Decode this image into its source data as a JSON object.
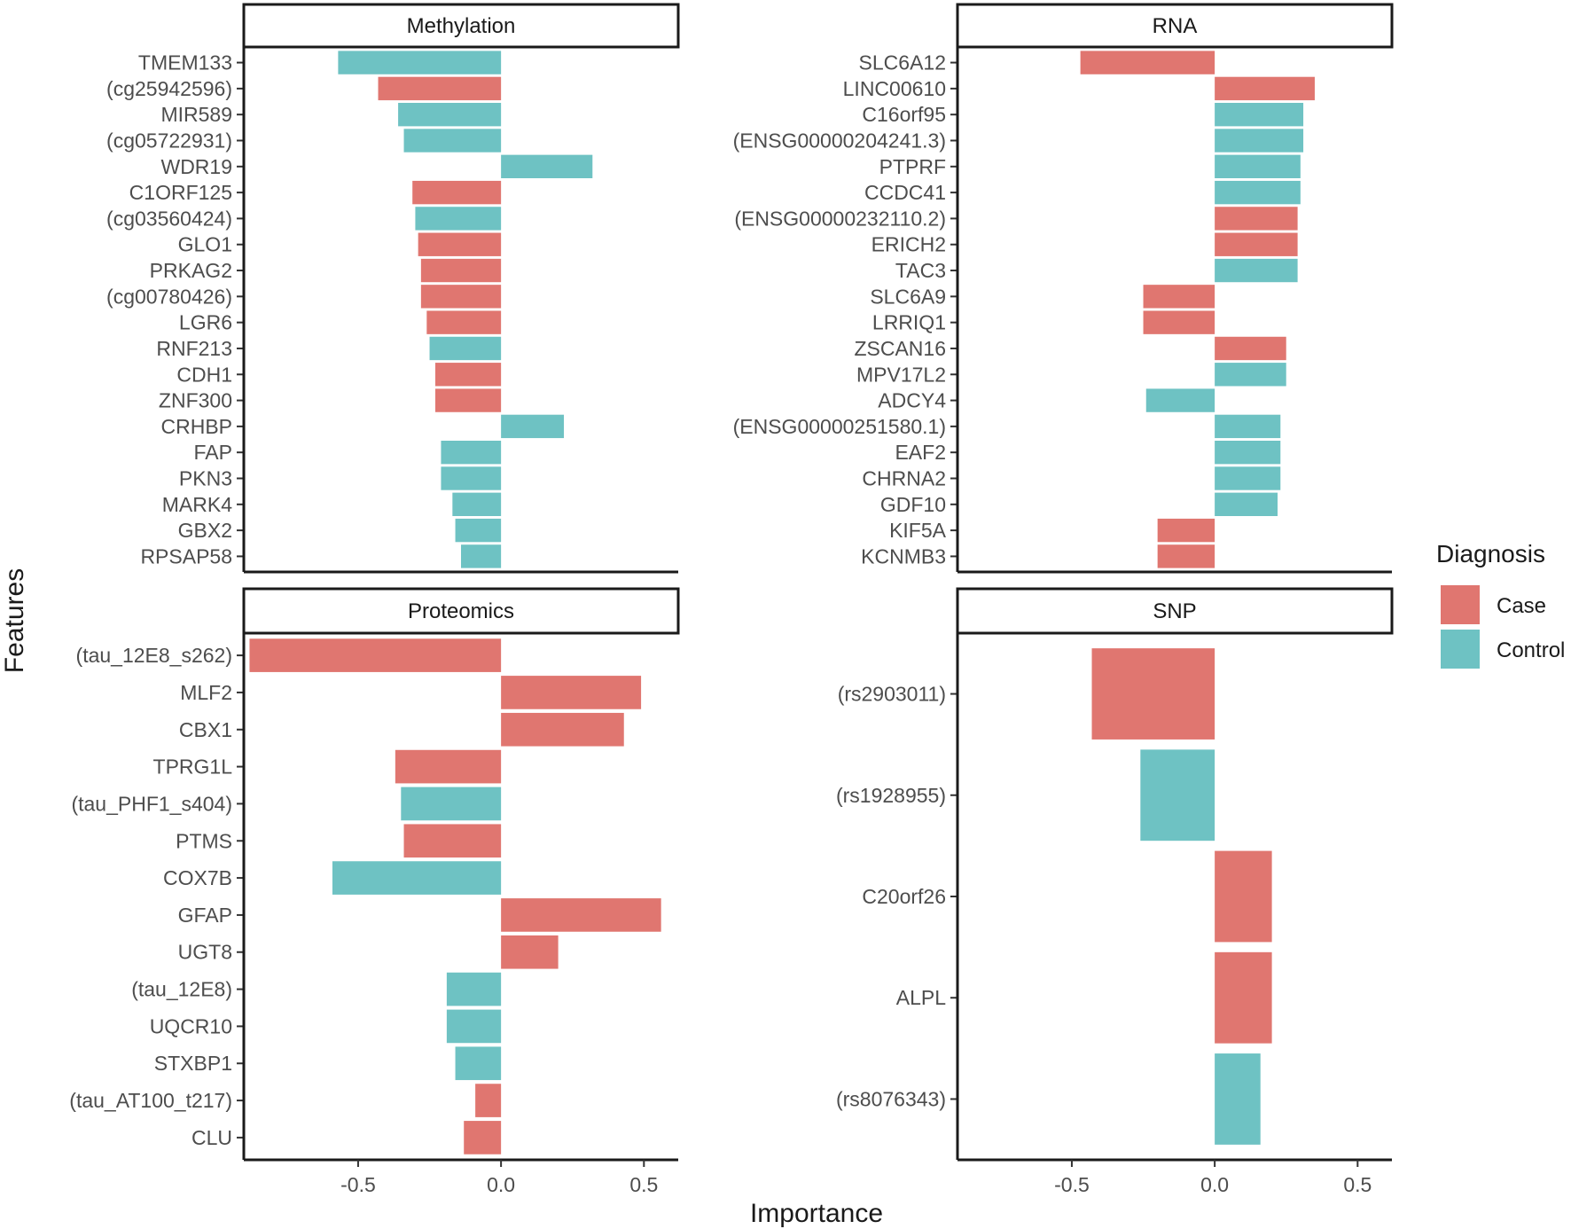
{
  "chart_data": {
    "type": "bar",
    "orientation": "horizontal",
    "xlabel": "Importance",
    "ylabel": "Features",
    "xlim": [
      -0.9,
      0.62
    ],
    "xticks": [
      -0.5,
      0.0,
      0.5
    ],
    "xtick_labels": [
      "-0.5",
      "0.0",
      "0.5"
    ],
    "legend": {
      "title": "Diagnosis",
      "position": "right",
      "entries": [
        {
          "label": "Case",
          "color": "#E07670"
        },
        {
          "label": "Control",
          "color": "#6EC2C3"
        }
      ]
    },
    "colors": {
      "Case": "#E07670",
      "Control": "#6EC2C3"
    },
    "panels": [
      {
        "title": "Methylation",
        "features": [
          {
            "name": "TMEM133",
            "value": -0.57,
            "group": "Control"
          },
          {
            "name": "(cg25942596)",
            "value": -0.43,
            "group": "Case"
          },
          {
            "name": "MIR589",
            "value": -0.36,
            "group": "Control"
          },
          {
            "name": "(cg05722931)",
            "value": -0.34,
            "group": "Control"
          },
          {
            "name": "WDR19",
            "value": 0.32,
            "group": "Control"
          },
          {
            "name": "C1ORF125",
            "value": -0.31,
            "group": "Case"
          },
          {
            "name": "(cg03560424)",
            "value": -0.3,
            "group": "Control"
          },
          {
            "name": "GLO1",
            "value": -0.29,
            "group": "Case"
          },
          {
            "name": "PRKAG2",
            "value": -0.28,
            "group": "Case"
          },
          {
            "name": "(cg00780426)",
            "value": -0.28,
            "group": "Case"
          },
          {
            "name": "LGR6",
            "value": -0.26,
            "group": "Case"
          },
          {
            "name": "RNF213",
            "value": -0.25,
            "group": "Control"
          },
          {
            "name": "CDH1",
            "value": -0.23,
            "group": "Case"
          },
          {
            "name": "ZNF300",
            "value": -0.23,
            "group": "Case"
          },
          {
            "name": "CRHBP",
            "value": 0.22,
            "group": "Control"
          },
          {
            "name": "FAP",
            "value": -0.21,
            "group": "Control"
          },
          {
            "name": "PKN3",
            "value": -0.21,
            "group": "Control"
          },
          {
            "name": "MARK4",
            "value": -0.17,
            "group": "Control"
          },
          {
            "name": "GBX2",
            "value": -0.16,
            "group": "Control"
          },
          {
            "name": "RPSAP58",
            "value": -0.14,
            "group": "Control"
          }
        ]
      },
      {
        "title": "RNA",
        "features": [
          {
            "name": "SLC6A12",
            "value": -0.47,
            "group": "Case"
          },
          {
            "name": "LINC00610",
            "value": 0.35,
            "group": "Case"
          },
          {
            "name": "C16orf95",
            "value": 0.31,
            "group": "Control"
          },
          {
            "name": "(ENSG00000204241.3)",
            "value": 0.31,
            "group": "Control"
          },
          {
            "name": "PTPRF",
            "value": 0.3,
            "group": "Control"
          },
          {
            "name": "CCDC41",
            "value": 0.3,
            "group": "Control"
          },
          {
            "name": "(ENSG00000232110.2)",
            "value": 0.29,
            "group": "Case"
          },
          {
            "name": "ERICH2",
            "value": 0.29,
            "group": "Case"
          },
          {
            "name": "TAC3",
            "value": 0.29,
            "group": "Control"
          },
          {
            "name": "SLC6A9",
            "value": -0.25,
            "group": "Case"
          },
          {
            "name": "LRRIQ1",
            "value": -0.25,
            "group": "Case"
          },
          {
            "name": "ZSCAN16",
            "value": 0.25,
            "group": "Case"
          },
          {
            "name": "MPV17L2",
            "value": 0.25,
            "group": "Control"
          },
          {
            "name": "ADCY4",
            "value": -0.24,
            "group": "Control"
          },
          {
            "name": "(ENSG00000251580.1)",
            "value": 0.23,
            "group": "Control"
          },
          {
            "name": "EAF2",
            "value": 0.23,
            "group": "Control"
          },
          {
            "name": "CHRNA2",
            "value": 0.23,
            "group": "Control"
          },
          {
            "name": "GDF10",
            "value": 0.22,
            "group": "Control"
          },
          {
            "name": "KIF5A",
            "value": -0.2,
            "group": "Case"
          },
          {
            "name": "KCNMB3",
            "value": -0.2,
            "group": "Case"
          }
        ]
      },
      {
        "title": "Proteomics",
        "features": [
          {
            "name": "(tau_12E8_s262)",
            "value": -0.88,
            "group": "Case"
          },
          {
            "name": "MLF2",
            "value": 0.49,
            "group": "Case"
          },
          {
            "name": "CBX1",
            "value": 0.43,
            "group": "Case"
          },
          {
            "name": "TPRG1L",
            "value": -0.37,
            "group": "Case"
          },
          {
            "name": "(tau_PHF1_s404)",
            "value": -0.35,
            "group": "Control"
          },
          {
            "name": "PTMS",
            "value": -0.34,
            "group": "Case"
          },
          {
            "name": "COX7B",
            "value": -0.59,
            "group": "Control"
          },
          {
            "name": "GFAP",
            "value": 0.56,
            "group": "Case"
          },
          {
            "name": "UGT8",
            "value": 0.2,
            "group": "Case"
          },
          {
            "name": "(tau_12E8)",
            "value": -0.19,
            "group": "Control"
          },
          {
            "name": "UQCR10",
            "value": -0.19,
            "group": "Control"
          },
          {
            "name": "STXBP1",
            "value": -0.16,
            "group": "Control"
          },
          {
            "name": "(tau_AT100_t217)",
            "value": -0.09,
            "group": "Case"
          },
          {
            "name": "CLU",
            "value": -0.13,
            "group": "Case"
          }
        ]
      },
      {
        "title": "SNP",
        "features": [
          {
            "name": "(rs2903011)",
            "value": -0.43,
            "group": "Case"
          },
          {
            "name": "(rs1928955)",
            "value": -0.26,
            "group": "Control"
          },
          {
            "name": "C20orf26",
            "value": 0.2,
            "group": "Case"
          },
          {
            "name": "ALPL",
            "value": 0.2,
            "group": "Case"
          },
          {
            "name": "(rs8076343)",
            "value": 0.16,
            "group": "Control"
          }
        ]
      }
    ]
  }
}
